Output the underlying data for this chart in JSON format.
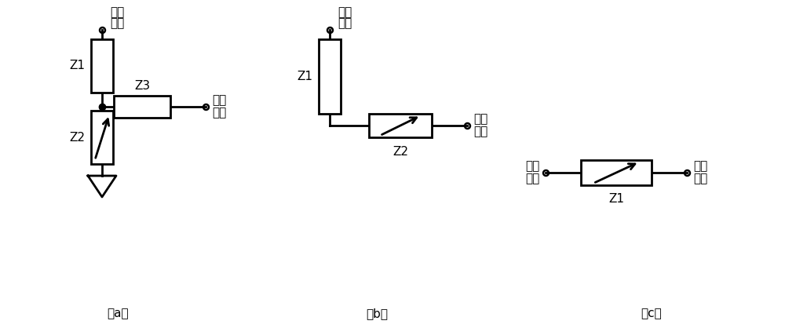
{
  "bg_color": "#ffffff",
  "line_color": "#000000",
  "line_width": 2.0,
  "font_size_label": 11,
  "font_size_sub": 11,
  "label_a": "（a）",
  "label_b": "（b）",
  "label_c": "（c）",
  "text_input_line1": "电学",
  "text_input_line2": "输入",
  "text_comp_line1": "补偿",
  "text_comp_line2": "信号",
  "text_z1": "Z",
  "text_z2": "Z",
  "text_z3": "Z",
  "sub1": "1",
  "sub2": "2",
  "sub3": "3"
}
